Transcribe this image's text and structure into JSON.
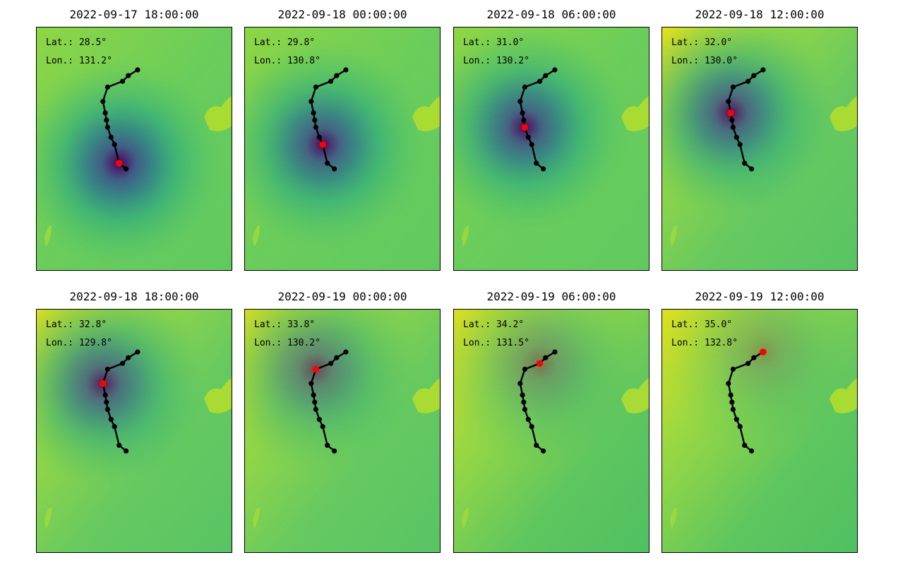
{
  "panels": [
    {
      "title": "2022-09-17 18:00:00",
      "lat_label": "Lat.: 28.5°",
      "lon_label": "Lon.: 131.2°",
      "current_index": 10,
      "core_strength": 1.0,
      "yellow_corner": "none"
    },
    {
      "title": "2022-09-18 00:00:00",
      "lat_label": "Lat.: 29.8°",
      "lon_label": "Lon.: 130.8°",
      "current_index": 9,
      "core_strength": 0.95,
      "yellow_corner": "none"
    },
    {
      "title": "2022-09-18 06:00:00",
      "lat_label": "Lat.: 31.0°",
      "lon_label": "Lon.: 130.2°",
      "current_index": 7,
      "core_strength": 0.95,
      "yellow_corner": "none"
    },
    {
      "title": "2022-09-18 12:00:00",
      "lat_label": "Lat.: 32.0°",
      "lon_label": "Lon.: 130.0°",
      "current_index": 5,
      "core_strength": 0.9,
      "yellow_corner": "top-left"
    },
    {
      "title": "2022-09-18 18:00:00",
      "lat_label": "Lat.: 32.8°",
      "lon_label": "Lon.: 129.8°",
      "current_index": 4,
      "core_strength": 0.85,
      "yellow_corner": "top-left"
    },
    {
      "title": "2022-09-19 00:00:00",
      "lat_label": "Lat.: 33.8°",
      "lon_label": "Lon.: 130.2°",
      "current_index": 3,
      "core_strength": 0.65,
      "yellow_corner": "top-left"
    },
    {
      "title": "2022-09-19 06:00:00",
      "lat_label": "Lat.: 34.2°",
      "lon_label": "Lon.: 131.5°",
      "current_index": 2,
      "core_strength": 0.45,
      "yellow_corner": "left"
    },
    {
      "title": "2022-09-19 12:00:00",
      "lat_label": "Lat.: 35.0°",
      "lon_label": "Lon.: 132.8°",
      "current_index": 0,
      "core_strength": 0.3,
      "yellow_corner": "left"
    }
  ],
  "track": {
    "points": [
      {
        "lat": 35.0,
        "lon": 132.8
      },
      {
        "lat": 34.6,
        "lon": 132.0
      },
      {
        "lat": 34.2,
        "lon": 131.5
      },
      {
        "lat": 33.8,
        "lon": 130.2
      },
      {
        "lat": 32.8,
        "lon": 129.8
      },
      {
        "lat": 32.0,
        "lon": 130.0
      },
      {
        "lat": 31.5,
        "lon": 130.1
      },
      {
        "lat": 31.0,
        "lon": 130.2
      },
      {
        "lat": 30.3,
        "lon": 130.5
      },
      {
        "lat": 29.8,
        "lon": 130.8
      },
      {
        "lat": 28.5,
        "lon": 131.2
      },
      {
        "lat": 28.1,
        "lon": 131.8
      }
    ]
  },
  "colors": {
    "colormap": "viridis",
    "track_line": "#000000",
    "track_point": "#000000",
    "current_point": "#ff0000",
    "frame": "#000000"
  }
}
